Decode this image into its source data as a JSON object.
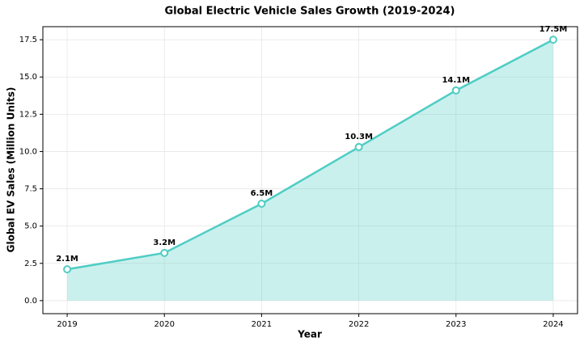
{
  "chart_data": {
    "type": "area_line",
    "title": "Global Electric Vehicle Sales Growth (2019-2024)",
    "x_label": "Year",
    "y_label": "Global EV Sales (Million Units)",
    "x": [
      2019,
      2020,
      2021,
      2022,
      2023,
      2024
    ],
    "values": [
      2.1,
      3.2,
      6.5,
      10.3,
      14.1,
      17.5
    ],
    "value_labels": [
      "2.1M",
      "3.2M",
      "6.5M",
      "10.3M",
      "14.1M",
      "17.5M"
    ],
    "color": "#4ecdc4",
    "xlim": [
      2018.75,
      2024.25
    ],
    "xticks": [
      2019,
      2020,
      2021,
      2022,
      2023,
      2024
    ],
    "ylim": [
      -0.875,
      18.375
    ],
    "yticks": [
      {
        "value": 0,
        "label": "0.0"
      },
      2.5,
      {
        "value": 5,
        "label": "5.0"
      },
      7.5,
      {
        "value": 10,
        "label": "10.0"
      },
      12.5,
      {
        "value": 15,
        "label": "15.0"
      },
      17.5
    ],
    "grid": true
  }
}
